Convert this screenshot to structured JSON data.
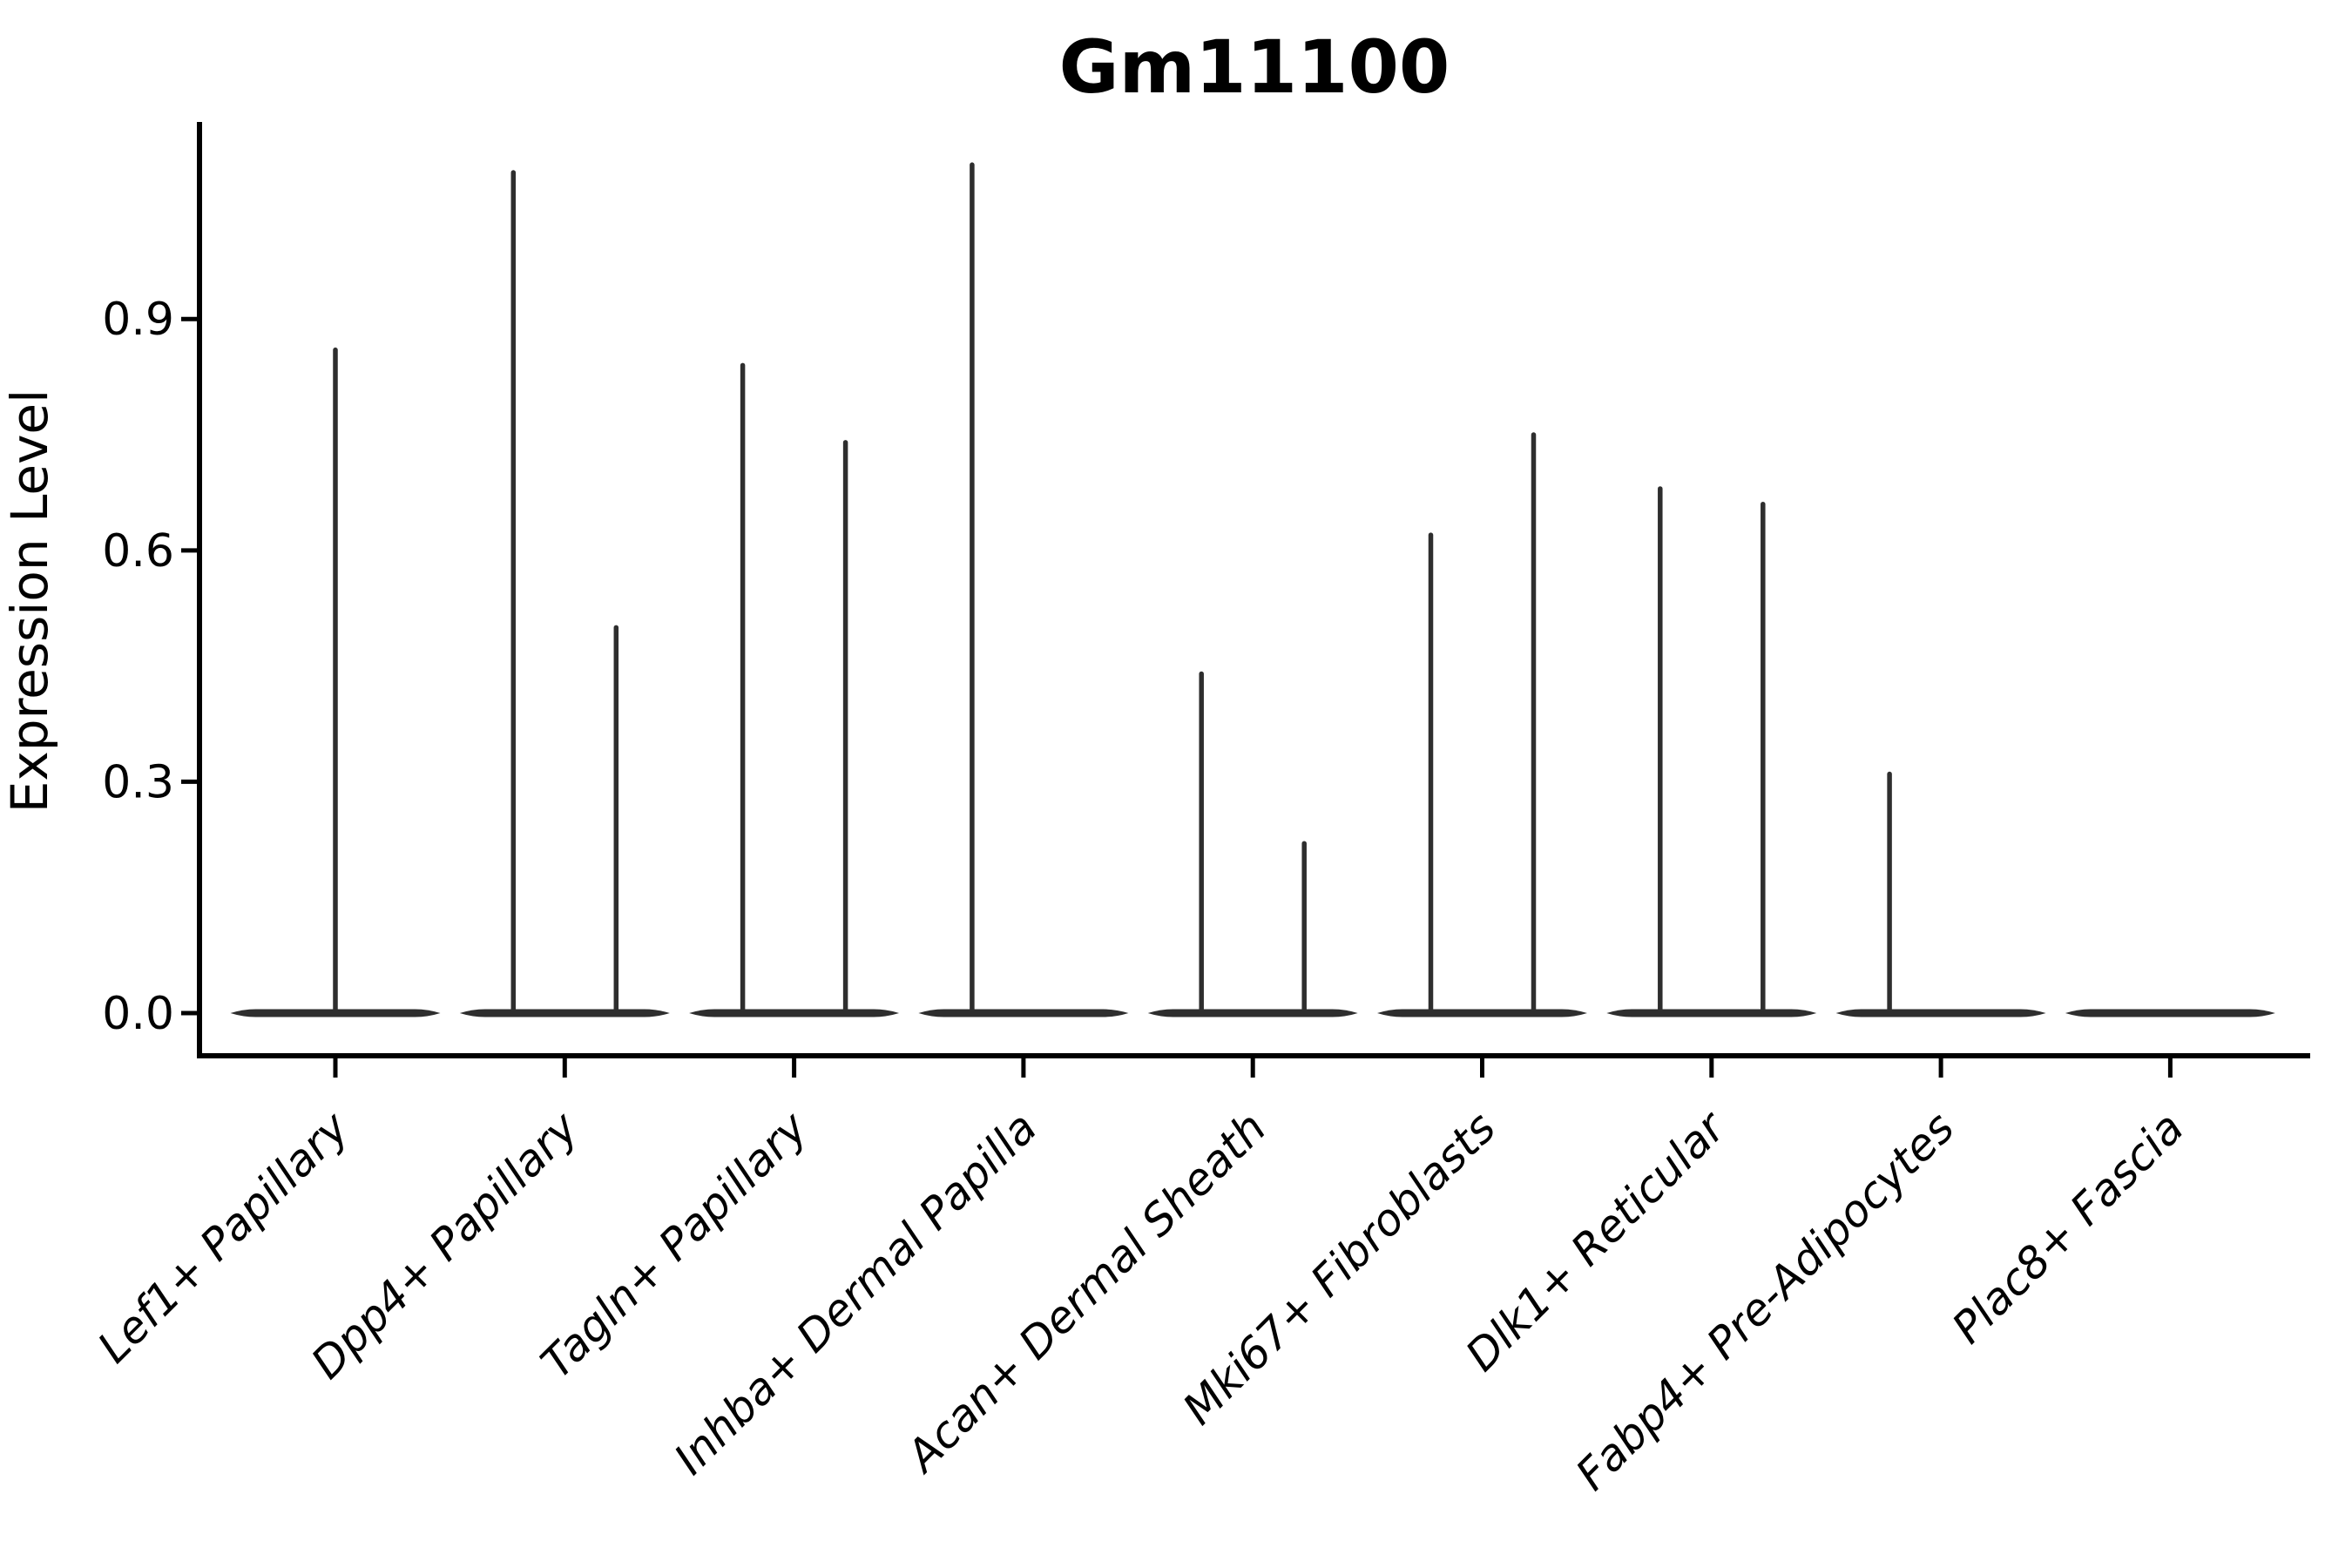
{
  "figure": {
    "title": "Gm11100",
    "ylabel": "Expression Level"
  },
  "chart_data": {
    "type": "violin",
    "title": "Gm11100",
    "xlabel": "",
    "ylabel": "Expression Level",
    "grid": false,
    "legend": null,
    "background_color": "#ffffff",
    "axis_color": "#000000",
    "violin_color": "#2e2e2e",
    "text_color": "#000000",
    "ylim": [
      -0.055,
      1.156
    ],
    "yticks": [
      {
        "label": "0.0",
        "value": 0.0
      },
      {
        "label": "0.3",
        "value": 0.3
      },
      {
        "label": "0.6",
        "value": 0.6
      },
      {
        "label": "0.9",
        "value": 0.9
      }
    ],
    "x_tick_rotation_deg": 45,
    "categories": [
      "Lef1+ Papillary",
      "Dpp4+ Papillary",
      "Tagln+ Papillary",
      "Inhba+ Dermal Papilla",
      "Acan+ Dermal Sheath",
      "Mki67+ Fibroblasts",
      "Dlk1+ Reticular",
      "Fabp4+ Pre-Adipocytes",
      "Plac8+ Fascia"
    ],
    "violins": [
      {
        "category": "Lef1+ Papillary",
        "flat_base_at": 0.0,
        "spikes": [
          {
            "position": "center",
            "peak": 0.86
          }
        ]
      },
      {
        "category": "Dpp4+ Papillary",
        "flat_base_at": 0.0,
        "spikes": [
          {
            "position": "left",
            "peak": 1.09
          },
          {
            "position": "right",
            "peak": 0.5
          }
        ]
      },
      {
        "category": "Tagln+ Papillary",
        "flat_base_at": 0.0,
        "spikes": [
          {
            "position": "left",
            "peak": 0.84
          },
          {
            "position": "right",
            "peak": 0.74
          }
        ]
      },
      {
        "category": "Inhba+ Dermal Papilla",
        "flat_base_at": 0.0,
        "spikes": [
          {
            "position": "left",
            "peak": 1.1
          }
        ]
      },
      {
        "category": "Acan+ Dermal Sheath",
        "flat_base_at": 0.0,
        "spikes": [
          {
            "position": "left",
            "peak": 0.44
          },
          {
            "position": "right",
            "peak": 0.22
          }
        ]
      },
      {
        "category": "Mki67+ Fibroblasts",
        "flat_base_at": 0.0,
        "spikes": [
          {
            "position": "left",
            "peak": 0.62
          },
          {
            "position": "right",
            "peak": 0.75
          }
        ]
      },
      {
        "category": "Dlk1+ Reticular",
        "flat_base_at": 0.0,
        "spikes": [
          {
            "position": "left",
            "peak": 0.68
          },
          {
            "position": "right",
            "peak": 0.66
          }
        ]
      },
      {
        "category": "Fabp4+ Pre-Adipocytes",
        "flat_base_at": 0.0,
        "spikes": [
          {
            "position": "left",
            "peak": 0.31
          }
        ]
      },
      {
        "category": "Plac8+ Fascia",
        "flat_base_at": 0.0,
        "spikes": []
      }
    ]
  }
}
